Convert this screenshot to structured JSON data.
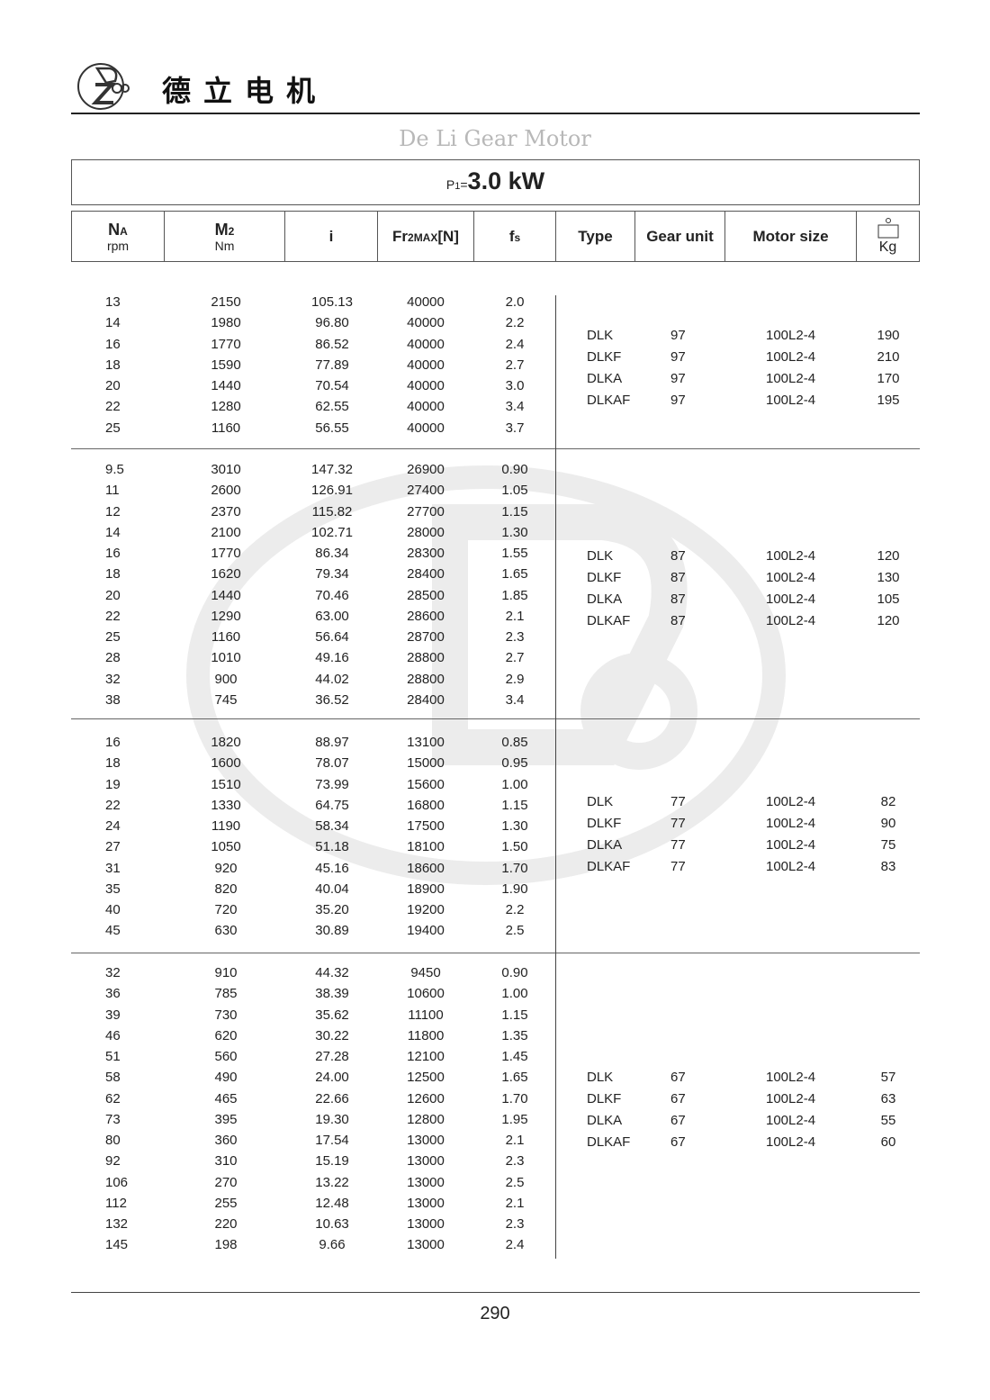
{
  "brand": {
    "name_cn": "德立电机",
    "logo_text": "De Li Gear Motor",
    "logo_cn": "德立"
  },
  "title": {
    "prefix": "P",
    "prefix_sub": "1",
    "eq": "=",
    "value": "3.0 kW"
  },
  "header": {
    "na": "N",
    "na_sub": "A",
    "na_unit": "rpm",
    "m2": "M",
    "m2_sub": "2",
    "m2_unit": "Nm",
    "i": "i",
    "fr": "Fr",
    "fr_sub": "2MAX",
    "fr_suffix": "[N]",
    "fs": "f",
    "fs_sub": "s",
    "type": "Type",
    "gear_unit": "Gear unit",
    "motor_size": "Motor size",
    "kg": "Kg"
  },
  "watermark": {
    "text": "De Li Gear Motor",
    "cn": "德立"
  },
  "groups": [
    {
      "rows": [
        [
          "13",
          "2150",
          "105.13",
          "40000",
          "2.0"
        ],
        [
          "14",
          "1980",
          "96.80",
          "40000",
          "2.2"
        ],
        [
          "16",
          "1770",
          "86.52",
          "40000",
          "2.4"
        ],
        [
          "18",
          "1590",
          "77.89",
          "40000",
          "2.7"
        ],
        [
          "20",
          "1440",
          "70.54",
          "40000",
          "3.0"
        ],
        [
          "22",
          "1280",
          "62.55",
          "40000",
          "3.4"
        ],
        [
          "25",
          "1160",
          "56.55",
          "40000",
          "3.7"
        ]
      ],
      "types": [
        [
          "DLK",
          "97",
          "100L2-4",
          "190"
        ],
        [
          "DLKF",
          "97",
          "100L2-4",
          "210"
        ],
        [
          "DLKA",
          "97",
          "100L2-4",
          "170"
        ],
        [
          "DLKAF",
          "97",
          "100L2-4",
          "195"
        ]
      ]
    },
    {
      "rows": [
        [
          "9.5",
          "3010",
          "147.32",
          "26900",
          "0.90"
        ],
        [
          "11",
          "2600",
          "126.91",
          "27400",
          "1.05"
        ],
        [
          "12",
          "2370",
          "115.82",
          "27700",
          "1.15"
        ],
        [
          "14",
          "2100",
          "102.71",
          "28000",
          "1.30"
        ],
        [
          "16",
          "1770",
          "86.34",
          "28300",
          "1.55"
        ],
        [
          "18",
          "1620",
          "79.34",
          "28400",
          "1.65"
        ],
        [
          "20",
          "1440",
          "70.46",
          "28500",
          "1.85"
        ],
        [
          "22",
          "1290",
          "63.00",
          "28600",
          "2.1"
        ],
        [
          "25",
          "1160",
          "56.64",
          "28700",
          "2.3"
        ],
        [
          "28",
          "1010",
          "49.16",
          "28800",
          "2.7"
        ],
        [
          "32",
          "900",
          "44.02",
          "28800",
          "2.9"
        ],
        [
          "38",
          "745",
          "36.52",
          "28400",
          "3.4"
        ]
      ],
      "types": [
        [
          "DLK",
          "87",
          "100L2-4",
          "120"
        ],
        [
          "DLKF",
          "87",
          "100L2-4",
          "130"
        ],
        [
          "DLKA",
          "87",
          "100L2-4",
          "105"
        ],
        [
          "DLKAF",
          "87",
          "100L2-4",
          "120"
        ]
      ]
    },
    {
      "rows": [
        [
          "16",
          "1820",
          "88.97",
          "13100",
          "0.85"
        ],
        [
          "18",
          "1600",
          "78.07",
          "15000",
          "0.95"
        ],
        [
          "19",
          "1510",
          "73.99",
          "15600",
          "1.00"
        ],
        [
          "22",
          "1330",
          "64.75",
          "16800",
          "1.15"
        ],
        [
          "24",
          "1190",
          "58.34",
          "17500",
          "1.30"
        ],
        [
          "27",
          "1050",
          "51.18",
          "18100",
          "1.50"
        ],
        [
          "31",
          "920",
          "45.16",
          "18600",
          "1.70"
        ],
        [
          "35",
          "820",
          "40.04",
          "18900",
          "1.90"
        ],
        [
          "40",
          "720",
          "35.20",
          "19200",
          "2.2"
        ],
        [
          "45",
          "630",
          "30.89",
          "19400",
          "2.5"
        ]
      ],
      "types": [
        [
          "DLK",
          "77",
          "100L2-4",
          "82"
        ],
        [
          "DLKF",
          "77",
          "100L2-4",
          "90"
        ],
        [
          "DLKA",
          "77",
          "100L2-4",
          "75"
        ],
        [
          "DLKAF",
          "77",
          "100L2-4",
          "83"
        ]
      ]
    },
    {
      "rows": [
        [
          "32",
          "910",
          "44.32",
          "9450",
          "0.90"
        ],
        [
          "36",
          "785",
          "38.39",
          "10600",
          "1.00"
        ],
        [
          "39",
          "730",
          "35.62",
          "11100",
          "1.15"
        ],
        [
          "46",
          "620",
          "30.22",
          "11800",
          "1.35"
        ],
        [
          "51",
          "560",
          "27.28",
          "12100",
          "1.45"
        ],
        [
          "58",
          "490",
          "24.00",
          "12500",
          "1.65"
        ],
        [
          "62",
          "465",
          "22.66",
          "12600",
          "1.70"
        ],
        [
          "73",
          "395",
          "19.30",
          "12800",
          "1.95"
        ],
        [
          "80",
          "360",
          "17.54",
          "13000",
          "2.1"
        ],
        [
          "92",
          "310",
          "15.19",
          "13000",
          "2.3"
        ],
        [
          "106",
          "270",
          "13.22",
          "13000",
          "2.5"
        ],
        [
          "112",
          "255",
          "12.48",
          "13000",
          "2.1"
        ],
        [
          "132",
          "220",
          "10.63",
          "13000",
          "2.3"
        ],
        [
          "145",
          "198",
          "9.66",
          "13000",
          "2.4"
        ]
      ],
      "types": [
        [
          "DLK",
          "67",
          "100L2-4",
          "57"
        ],
        [
          "DLKF",
          "67",
          "100L2-4",
          "63"
        ],
        [
          "DLKA",
          "67",
          "100L2-4",
          "55"
        ],
        [
          "DLKAF",
          "67",
          "100L2-4",
          "60"
        ]
      ]
    }
  ],
  "page_number": "290"
}
